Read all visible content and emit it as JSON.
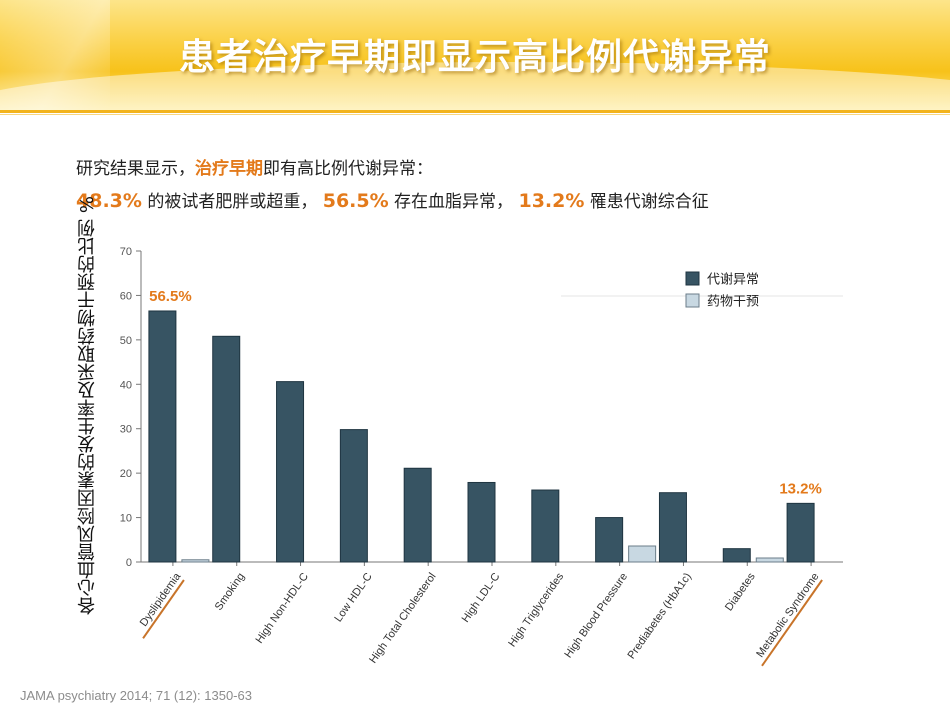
{
  "header": {
    "title": "患者治疗早期即显示高比例代谢异常"
  },
  "intro": {
    "line1_prefix": "研究结果显示，",
    "line1_highlight": "治疗早期",
    "line1_suffix": "即有高比例代谢异常：",
    "stat1_value": "48.3%",
    "stat1_text": " 的被试者肥胖或超重，",
    "stat2_value": "56.5%",
    "stat2_text": " 存在血脂异常，",
    "stat3_value": "13.2%",
    "stat3_text": " 罹患代谢综合征"
  },
  "footer": {
    "source": "JAMA psychiatry   2014; 71 (12): 1350-63"
  },
  "colors": {
    "metabolic": "#375463",
    "intervention": "#c8d8e2",
    "highlight": "#e37a1b",
    "underline": "#c8742a"
  },
  "chart_data": {
    "type": "bar",
    "title": "",
    "ylabel": "各心血管风险因素的发生率及采取药物干预的比例 %",
    "xlabel": "",
    "ylim": [
      0,
      70
    ],
    "yticks": [
      0,
      10,
      20,
      30,
      40,
      50,
      60,
      70
    ],
    "grid": false,
    "legend_position": "top-right",
    "categories": [
      "Dyslipidemia",
      "Smoking",
      "High Non-HDL-C",
      "Low HDL-C",
      "High Total Cholesterol",
      "High LDL-C",
      "High Triglycerides",
      "High Blood Pressure",
      "Prediabetes (HbA1c)",
      "Diabetes",
      "Metabolic Syndrome"
    ],
    "series": [
      {
        "name": "代谢异常",
        "values": [
          56.5,
          50.8,
          40.6,
          29.8,
          21.1,
          17.9,
          16.2,
          10.0,
          15.6,
          3.0,
          13.2
        ]
      },
      {
        "name": "药物干预",
        "values": [
          0.5,
          null,
          null,
          null,
          null,
          null,
          null,
          3.6,
          null,
          0.9,
          null
        ]
      }
    ],
    "annotations": [
      {
        "category": "Dyslipidemia",
        "text": "56.5%"
      },
      {
        "category": "Metabolic Syndrome",
        "text": "13.2%"
      }
    ],
    "underlined_categories": [
      "Dyslipidemia",
      "Metabolic Syndrome"
    ]
  }
}
